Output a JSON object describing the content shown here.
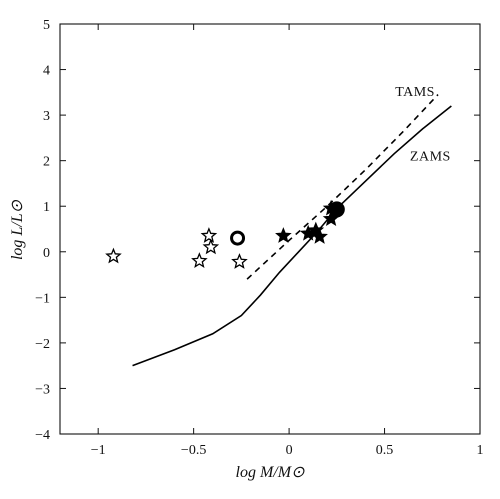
{
  "chart_data": {
    "type": "scatter",
    "title": "",
    "xlabel": "log M/M⊙",
    "ylabel": "log L/L⊙",
    "xlim": [
      -1.2,
      1.0
    ],
    "ylim": [
      -4,
      5
    ],
    "xticks": [
      -1,
      -0.5,
      0,
      0.5,
      1
    ],
    "xtick_labels": [
      "−1",
      "−0.5",
      "0",
      "0.5",
      "1"
    ],
    "yticks": [
      -4,
      -3,
      -2,
      -1,
      0,
      1,
      2,
      3,
      4,
      5
    ],
    "ytick_labels": [
      "−4",
      "−3",
      "−2",
      "−1",
      "0",
      "1",
      "2",
      "3",
      "4",
      "5"
    ],
    "grid": false,
    "legend": "none",
    "series": [
      {
        "name": "ZAMS",
        "style": "solid-line",
        "color": "#000000",
        "points": [
          [
            -0.82,
            -2.5
          ],
          [
            -0.6,
            -2.15
          ],
          [
            -0.4,
            -1.8
          ],
          [
            -0.25,
            -1.4
          ],
          [
            -0.15,
            -0.95
          ],
          [
            -0.05,
            -0.45
          ],
          [
            0.05,
            0.0
          ],
          [
            0.15,
            0.45
          ],
          [
            0.25,
            0.95
          ],
          [
            0.4,
            1.55
          ],
          [
            0.55,
            2.15
          ],
          [
            0.7,
            2.7
          ],
          [
            0.85,
            3.2
          ]
        ]
      },
      {
        "name": "TAMS",
        "style": "dashed-line",
        "color": "#000000",
        "points": [
          [
            -0.22,
            -0.6
          ],
          [
            0.0,
            0.25
          ],
          [
            0.2,
            1.0
          ],
          [
            0.4,
            1.8
          ],
          [
            0.6,
            2.65
          ],
          [
            0.78,
            3.45
          ]
        ]
      },
      {
        "style": "open-star",
        "color": "#000000",
        "points": [
          [
            -0.92,
            -0.1
          ],
          [
            -0.47,
            -0.2
          ],
          [
            -0.42,
            0.35
          ],
          [
            -0.41,
            0.1
          ],
          [
            -0.26,
            -0.22
          ]
        ]
      },
      {
        "style": "filled-star",
        "color": "#000000",
        "points": [
          [
            -0.03,
            0.35
          ],
          [
            0.1,
            0.4
          ],
          [
            0.14,
            0.47
          ],
          [
            0.16,
            0.33
          ],
          [
            0.22,
            0.72
          ],
          [
            0.22,
            0.95
          ]
        ]
      },
      {
        "style": "open-circle",
        "color": "#000000",
        "points": [
          [
            -0.27,
            0.3
          ]
        ]
      },
      {
        "style": "filled-circle",
        "color": "#000000",
        "points": [
          [
            0.25,
            0.93
          ]
        ]
      }
    ],
    "annotations": [
      {
        "text": "TAMS",
        "x": 0.66,
        "y": 3.42
      },
      {
        "text": "ZAMS",
        "x": 0.74,
        "y": 2.0
      }
    ]
  }
}
